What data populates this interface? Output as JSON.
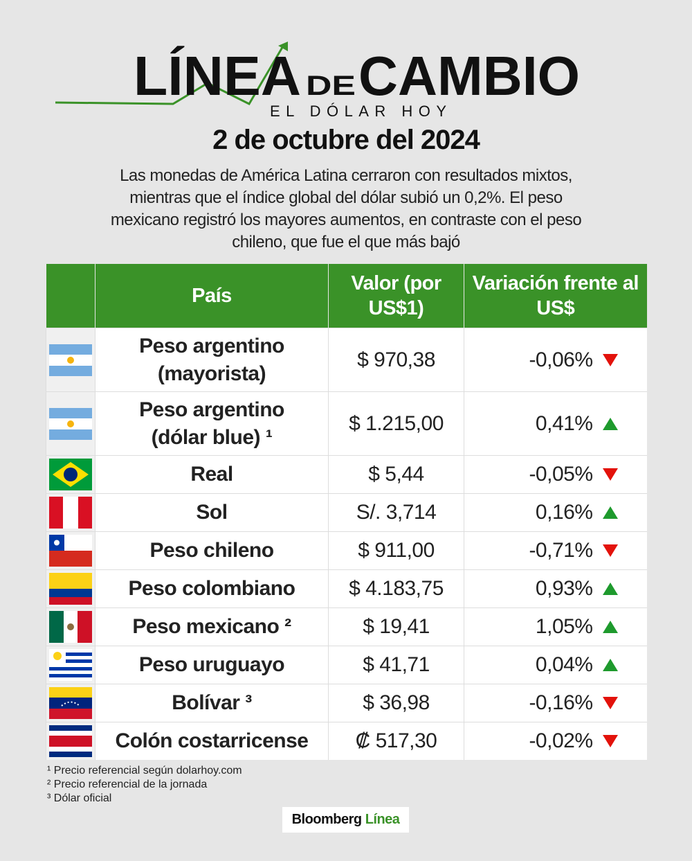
{
  "header": {
    "title_1": "LÍNEA",
    "title_2": "DE",
    "title_3": "CAMBIO",
    "subtitle": "EL DÓLAR HOY",
    "date": "2 de octubre del 2024",
    "description": "Las monedas de América Latina cerraron con resultados mixtos, mientras que el índice global del dólar subió un 0,2%. El peso mexicano registró los mayores aumentos, en contraste con el peso chileno, que fue el que más bajó"
  },
  "table": {
    "columns": [
      "País",
      "Valor (por US$1)",
      "Variación frente al US$"
    ],
    "rows": [
      {
        "name": "Peso argentino (mayorista)",
        "value": "$ 970,38",
        "change": "-0,06%",
        "trend": "down"
      },
      {
        "name": "Peso argentino (dólar blue) ¹",
        "value": "$ 1.215,00",
        "change": "0,41%",
        "trend": "up"
      },
      {
        "name": "Real",
        "value": "$ 5,44",
        "change": "-0,05%",
        "trend": "down"
      },
      {
        "name": "Sol",
        "value": "S/. 3,714",
        "change": "0,16%",
        "trend": "up"
      },
      {
        "name": "Peso chileno",
        "value": "$ 911,00",
        "change": "-0,71%",
        "trend": "down"
      },
      {
        "name": "Peso colombiano",
        "value": "$ 4.183,75",
        "change": "0,93%",
        "trend": "up"
      },
      {
        "name": "Peso mexicano ²",
        "value": "$ 19,41",
        "change": "1,05%",
        "trend": "up"
      },
      {
        "name": "Peso uruguayo",
        "value": "$ 41,71",
        "change": "0,04%",
        "trend": "up"
      },
      {
        "name": "Bolívar ³",
        "value": "$ 36,98",
        "change": "-0,16%",
        "trend": "down"
      },
      {
        "name": "Colón costarricense",
        "value": "₡ 517,30",
        "change": "-0,02%",
        "trend": "down"
      }
    ]
  },
  "footnotes": [
    "¹ Precio referencial según dolarhoy.com",
    "² Precio referencial de la jornada",
    "³ Dólar oficial"
  ],
  "brand": {
    "name": "Bloomberg",
    "suffix": "Línea"
  }
}
